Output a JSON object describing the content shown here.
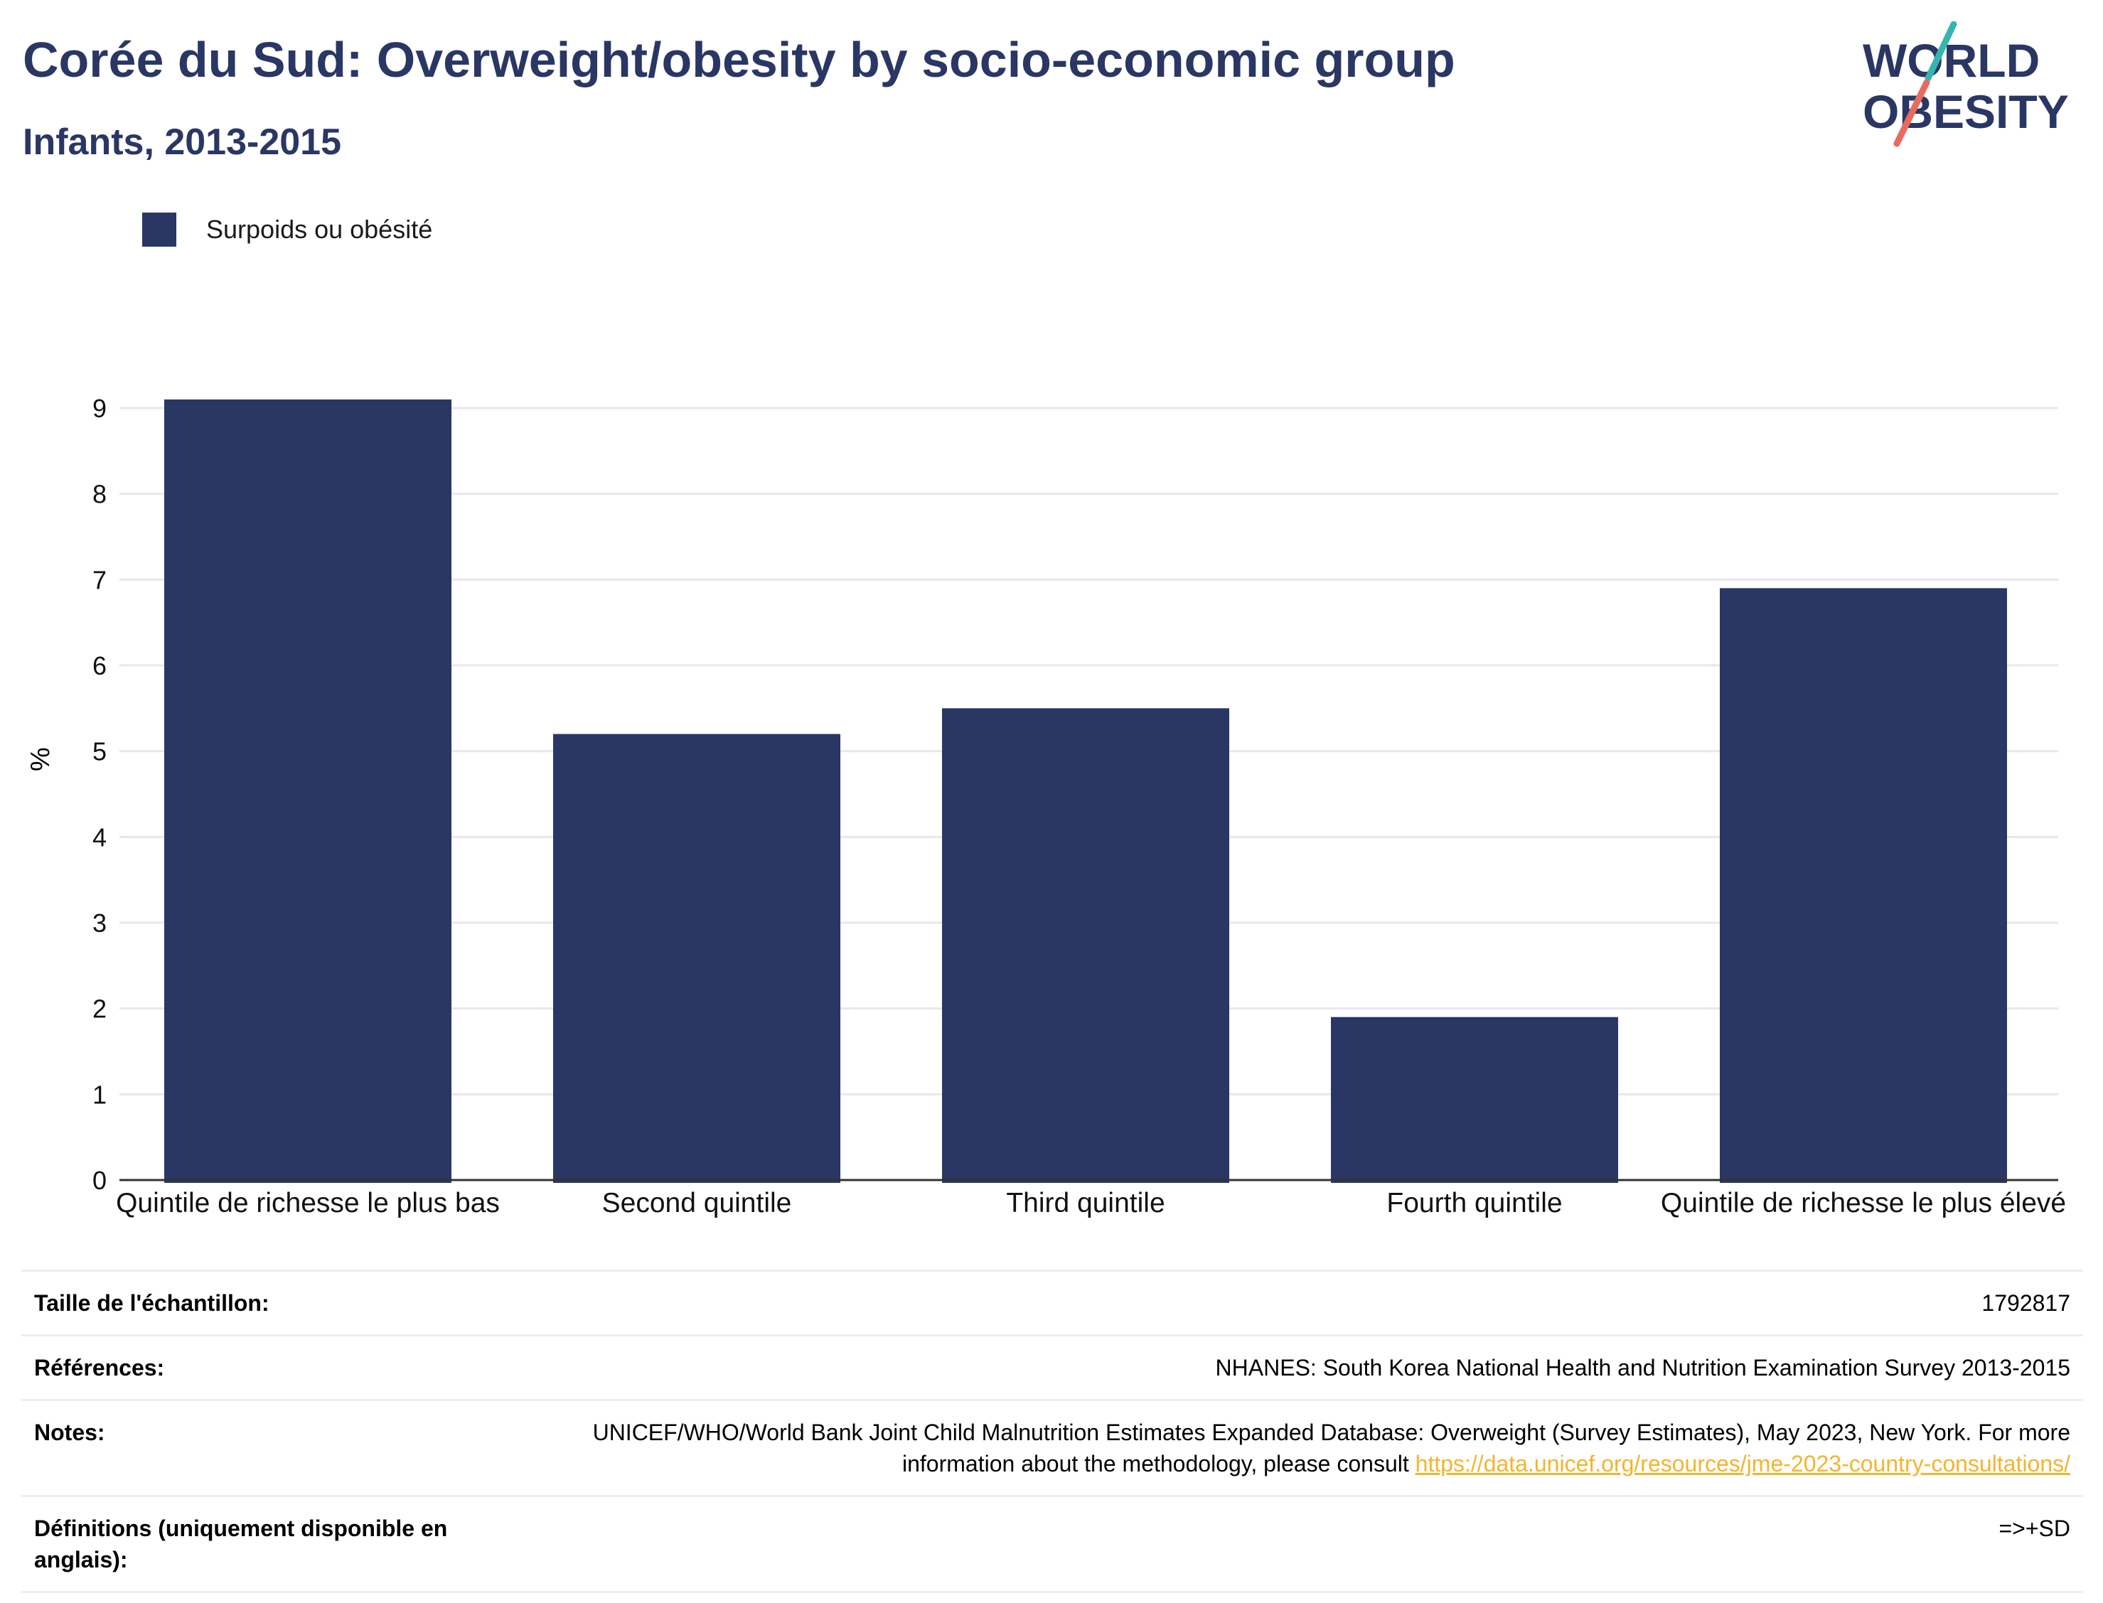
{
  "header": {
    "title": "Corée du Sud: Overweight/obesity by socio-economic group",
    "subtitle": "Infants, 2013-2015"
  },
  "logo": {
    "line1": "WORLD",
    "line2": "OBESITY"
  },
  "colors": {
    "bar": "#2a3764",
    "title": "#2a3764",
    "link": "#f3b52c",
    "grid": "#e6e8ee"
  },
  "chart_data": {
    "type": "bar",
    "categories": [
      "Quintile de richesse le plus bas",
      "Second quintile",
      "Third quintile",
      "Fourth quintile",
      "Quintile de richesse le plus élevé"
    ],
    "series": [
      {
        "name": "Surpoids ou obésité",
        "values": [
          9.1,
          5.2,
          5.5,
          1.9,
          6.9
        ]
      }
    ],
    "ylabel": "%",
    "ylim": [
      0,
      9
    ],
    "yticks": [
      "0",
      "1",
      "2",
      "3",
      "4",
      "5",
      "6",
      "7",
      "8",
      "9"
    ],
    "grid": true,
    "legend": "top-left"
  },
  "info": {
    "sample_label": "Taille de l'échantillon:",
    "sample_value": "1792817",
    "references_label": "Références:",
    "references_value": "NHANES: South Korea National Health and Nutrition Examination Survey 2013-2015",
    "notes_label": "Notes:",
    "notes_value": "UNICEF/WHO/World Bank Joint Child Malnutrition Estimates Expanded Database: Overweight (Survey Estimates), May 2023, New York. For more information about the methodology, please consult ",
    "notes_link": "https://data.unicef.org/resources/jme-2023-country-consultations/",
    "definitions_label": "Définitions (uniquement disponible en anglais):",
    "definitions_value": "=>+SD"
  }
}
